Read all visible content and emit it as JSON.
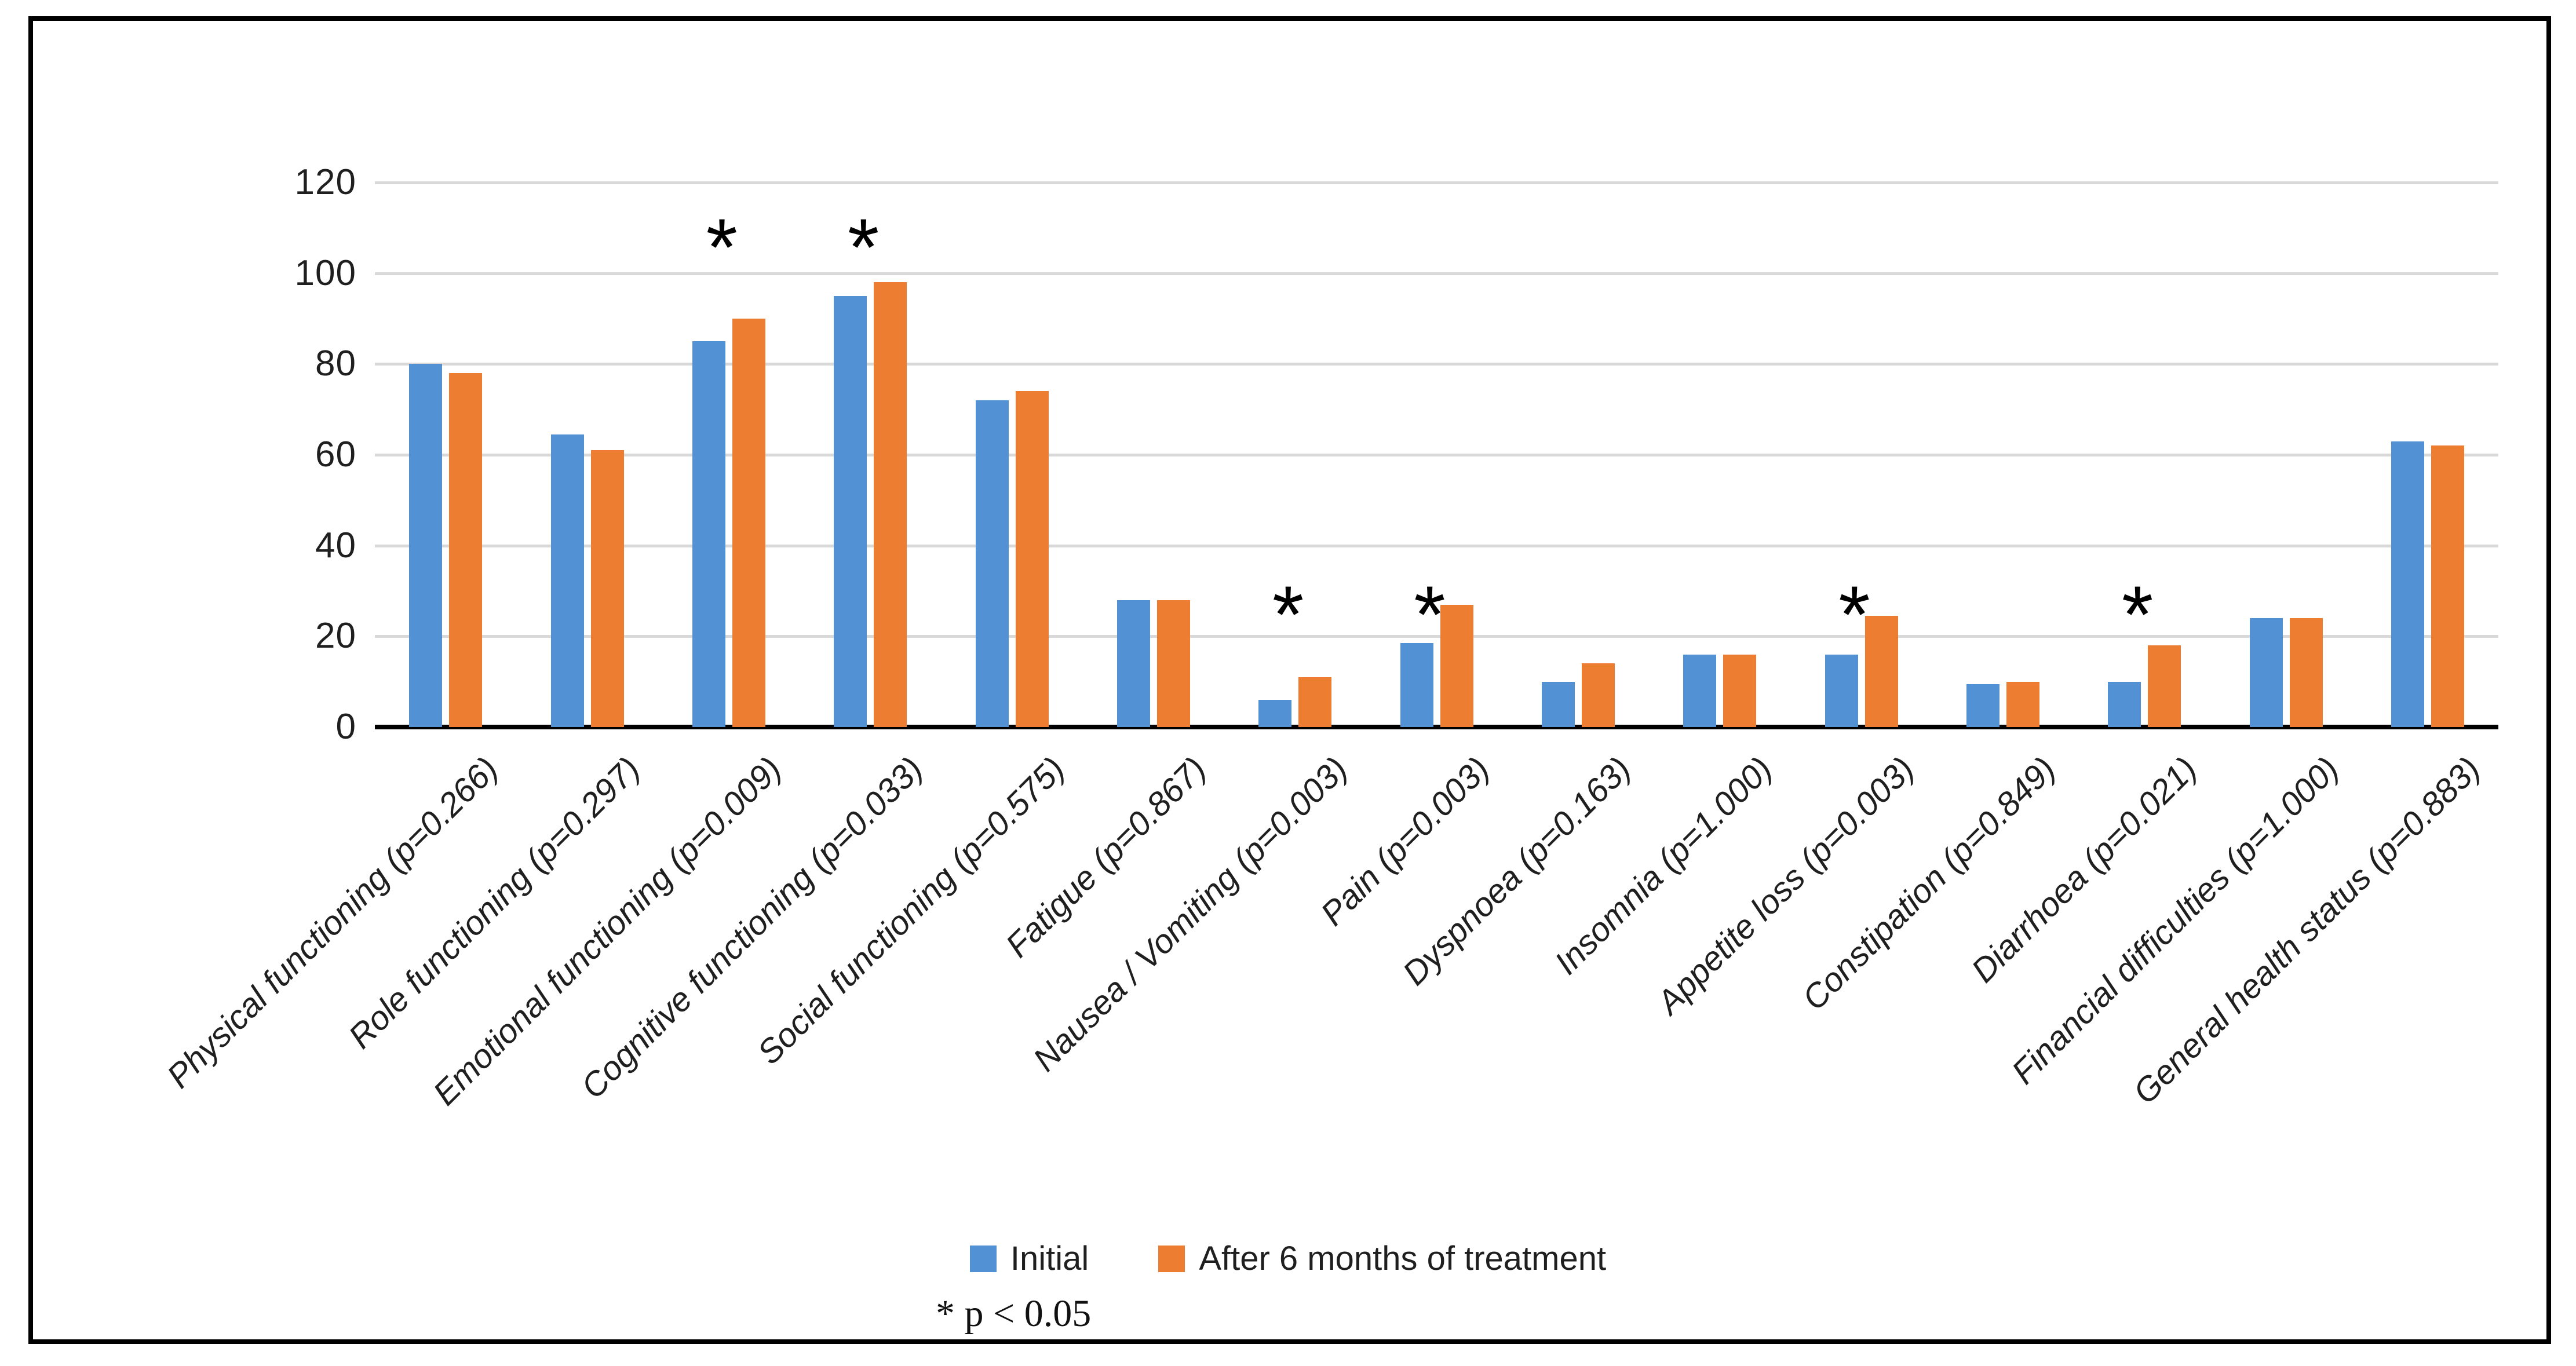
{
  "chart_data": {
    "type": "bar",
    "title": "",
    "categories": [
      "Physical functioning (p=0.266)",
      "Role functioning (p=0.297)",
      "Emotional functioning (p=0.009)",
      "Cognitive functioning (p=0.033)",
      "Social functioning (p=0.575)",
      "Fatigue (p=0.867)",
      "Nausea / Vomiting (p=0.003)",
      "Pain (p=0.003)",
      "Dyspnoea (p=0.163)",
      "Insomnia (p=1.000)",
      "Appetite loss (p=0.003)",
      "Constipation (p=0.849)",
      "Diarrhoea (p=0.021)",
      "Financial difficulties (p=1.000)",
      "General health status (p=0.883)"
    ],
    "series": [
      {
        "name": "Initial",
        "color": "#5391D5",
        "values": [
          80,
          64.5,
          85,
          95,
          72,
          28,
          6,
          18.5,
          10,
          16,
          16,
          9.5,
          10,
          24,
          63
        ]
      },
      {
        "name": "After 6 months of treatment",
        "color": "#ED7D31",
        "values": [
          78,
          61,
          90,
          98,
          74,
          28,
          11,
          27,
          14,
          16,
          24.5,
          10,
          18,
          24,
          62
        ]
      }
    ],
    "ylim": [
      0,
      120
    ],
    "ytick_step": 20,
    "grid": true,
    "xlabel": "",
    "ylabel": "",
    "legend_position": "bottom-center",
    "significant_categories": [
      2,
      3,
      6,
      7,
      10,
      12
    ],
    "significance_marker": "*",
    "footnote": "* p < 0.05"
  },
  "colors": {
    "gridline": "#D9D9D9",
    "axis": "#000000",
    "text": "#1F1F1F",
    "frame_border": "#000000",
    "background": "#FFFFFF"
  }
}
